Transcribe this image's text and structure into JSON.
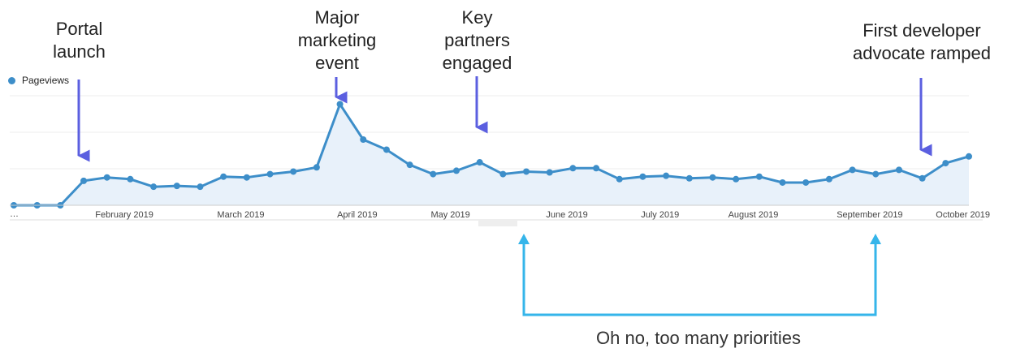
{
  "legend": {
    "label": "Pageviews",
    "color": "#3d8ec9"
  },
  "axis_start_label": "…",
  "annotations": [
    {
      "text": "Portal\nlaunch"
    },
    {
      "text": "Major\nmarketing\nevent"
    },
    {
      "text": "Key\npartners\nengaged"
    },
    {
      "text": "First developer\nadvocate ramped"
    }
  ],
  "bottom_note": "Oh no, too many priorities",
  "colors": {
    "line": "#3d8ec9",
    "area": "#e8f1fa",
    "arrow": "#5b5fe0",
    "bracket": "#35b5ea"
  },
  "chart_data": {
    "type": "area",
    "series": [
      {
        "name": "Pageviews",
        "values": [
          0,
          0,
          0,
          29,
          33,
          31,
          22,
          23,
          22,
          34,
          33,
          37,
          40,
          45,
          120,
          78,
          66,
          48,
          37,
          41,
          51,
          37,
          40,
          39,
          44,
          44,
          31,
          34,
          35,
          32,
          33,
          31,
          34,
          27,
          27,
          31,
          42,
          37,
          42,
          32,
          50,
          58
        ]
      }
    ],
    "x_tick_labels": [
      "February 2019",
      "March 2019",
      "April 2019",
      "May 2019",
      "June 2019",
      "July 2019",
      "August 2019",
      "September 2019",
      "October 2019"
    ],
    "x_tick_index": [
      3,
      8,
      13,
      17,
      22,
      26,
      30,
      35,
      39
    ],
    "y_range": [
      0,
      130
    ],
    "y_tick_labels": [],
    "grid": true,
    "legend_position": "top-left"
  }
}
